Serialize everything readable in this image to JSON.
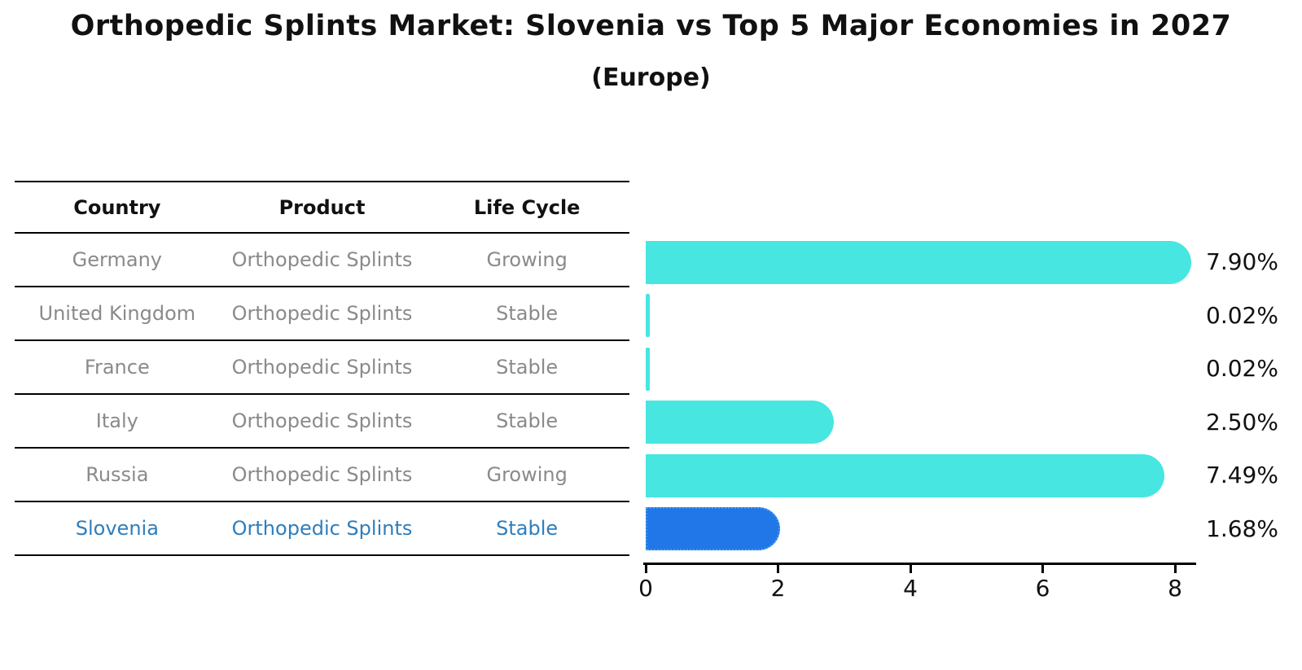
{
  "title": "Orthopedic Splints Market: Slovenia vs Top 5 Major Economies in 2027",
  "subtitle": "(Europe)",
  "table": {
    "headers": [
      "Country",
      "Product",
      "Life Cycle"
    ],
    "rows": [
      {
        "country": "Germany",
        "product": "Orthopedic Splints",
        "life_cycle": "Growing",
        "highlight": false
      },
      {
        "country": "United Kingdom",
        "product": "Orthopedic Splints",
        "life_cycle": "Stable",
        "highlight": false
      },
      {
        "country": "France",
        "product": "Orthopedic Splints",
        "life_cycle": "Stable",
        "highlight": false
      },
      {
        "country": "Italy",
        "product": "Orthopedic Splints",
        "life_cycle": "Stable",
        "highlight": false
      },
      {
        "country": "Russia",
        "product": "Orthopedic Splints",
        "life_cycle": "Growing",
        "highlight": false
      },
      {
        "country": "Slovenia",
        "product": "Orthopedic Splints",
        "life_cycle": "Stable",
        "highlight": true
      }
    ]
  },
  "chart_data": {
    "type": "bar",
    "orientation": "horizontal",
    "title": "Orthopedic Splints Market: Slovenia vs Top 5 Major Economies in 2027",
    "subtitle": "(Europe)",
    "categories": [
      "Germany",
      "United Kingdom",
      "France",
      "Italy",
      "Russia",
      "Slovenia"
    ],
    "values": [
      7.9,
      0.02,
      0.02,
      2.5,
      7.49,
      1.68
    ],
    "value_labels": [
      "7.90%",
      "0.02%",
      "0.02%",
      "2.50%",
      "7.49%",
      "1.68%"
    ],
    "highlight_index": 5,
    "xlabel": "",
    "ylabel": "",
    "xlim": [
      0,
      8
    ],
    "xticks": [
      "0",
      "2",
      "4",
      "6",
      "8"
    ],
    "grid": false,
    "legend": false,
    "bar_color": "#47e6e0",
    "highlight_bar_color": "#2176e8",
    "highlight_text_color": "#2e7ebd",
    "row_text_color": "#8a8a8a",
    "axis_color": "#000000"
  }
}
